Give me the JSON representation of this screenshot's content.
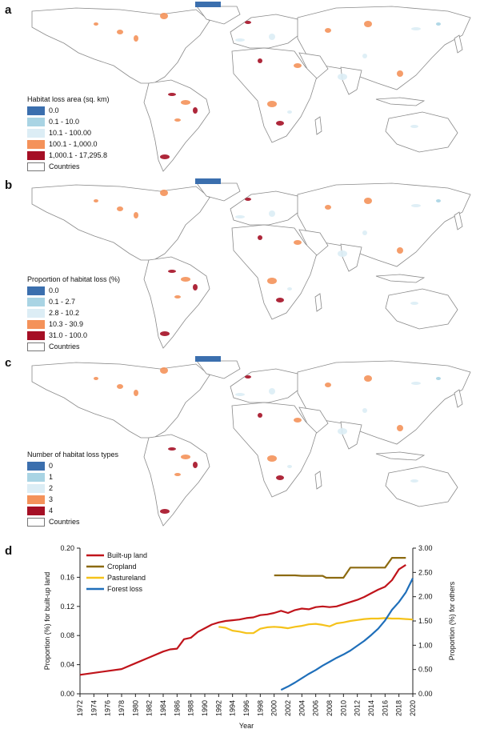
{
  "colors": {
    "class0": "#3b6fae",
    "class1": "#a9d4e4",
    "class2": "#dcedf5",
    "class3": "#f4925a",
    "class4": "#a50f25",
    "land": "#ffffff",
    "border": "#8a8a8a",
    "built_up": "#c0141b",
    "cropland": "#8c6a10",
    "pastureland": "#f5c21a",
    "forest_loss": "#1f6fba"
  },
  "panels": [
    {
      "letter": "a",
      "legend_title": "Habitat loss area (sq. km)",
      "legend": [
        "0.0",
        "0.1 - 10.0",
        "10.1 - 100.00",
        "100.1 - 1,000.0",
        "1,000.1 - 17,295.8"
      ],
      "countries_label": "Countries"
    },
    {
      "letter": "b",
      "legend_title": "Proportion of habitat loss (%)",
      "legend": [
        "0.0",
        "0.1 - 2.7",
        "2.8 - 10.2",
        "10.3 - 30.9",
        "31.0 - 100.0"
      ],
      "countries_label": "Countries"
    },
    {
      "letter": "c",
      "legend_title": "Number of habitat loss types",
      "legend": [
        "0",
        "1",
        "2",
        "3",
        "4"
      ],
      "countries_label": "Countries"
    }
  ],
  "chart_data": {
    "panel_letter": "d",
    "type": "line",
    "xlabel": "Year",
    "ylabel_left": "Proportion (%) for built-up land",
    "ylabel_right": "Proportion (%) for others",
    "xlim": [
      1972,
      2020
    ],
    "xticks": [
      "1972",
      "1974",
      "1976",
      "1978",
      "1980",
      "1982",
      "1984",
      "1986",
      "1988",
      "1990",
      "1992",
      "1994",
      "1996",
      "1998",
      "2000",
      "2002",
      "2004",
      "2006",
      "2008",
      "2010",
      "2012",
      "2014",
      "2016",
      "2018",
      "2020"
    ],
    "ylim_left": [
      0,
      0.2
    ],
    "yticks_left": [
      "0.00",
      "0.04",
      "0.08",
      "0.12",
      "0.16",
      "0.20"
    ],
    "ylim_right": [
      0,
      3
    ],
    "yticks_right": [
      "0.00",
      "0.50",
      "1.00",
      "1.50",
      "2.00",
      "2.50",
      "3.00"
    ],
    "series": [
      {
        "name": "Built-up land",
        "axis": "left",
        "color_key": "built_up",
        "x": [
          1972,
          1975,
          1978,
          1980,
          1982,
          1984,
          1985,
          1986,
          1987,
          1988,
          1989,
          1990,
          1991,
          1992,
          1993,
          1994,
          1995,
          1996,
          1997,
          1998,
          1999,
          2000,
          2001,
          2002,
          2003,
          2004,
          2005,
          2006,
          2007,
          2008,
          2009,
          2010,
          2011,
          2012,
          2013,
          2014,
          2015,
          2016,
          2017,
          2018,
          2019
        ],
        "values": [
          0.026,
          0.03,
          0.034,
          0.042,
          0.05,
          0.058,
          0.061,
          0.062,
          0.075,
          0.077,
          0.085,
          0.09,
          0.095,
          0.098,
          0.1,
          0.101,
          0.102,
          0.104,
          0.105,
          0.108,
          0.109,
          0.111,
          0.114,
          0.111,
          0.115,
          0.117,
          0.116,
          0.119,
          0.12,
          0.119,
          0.12,
          0.123,
          0.126,
          0.129,
          0.133,
          0.138,
          0.143,
          0.147,
          0.156,
          0.171,
          0.177
        ]
      },
      {
        "name": "Cropland",
        "axis": "right",
        "color_key": "cropland",
        "x": [
          2000,
          2001,
          2002,
          2003,
          2004,
          2005,
          2006,
          2007,
          2007.5,
          2008,
          2009,
          2010,
          2011,
          2012,
          2013,
          2014,
          2015,
          2016,
          2017,
          2018,
          2019
        ],
        "values": [
          2.44,
          2.44,
          2.44,
          2.44,
          2.43,
          2.43,
          2.43,
          2.43,
          2.39,
          2.39,
          2.39,
          2.39,
          2.6,
          2.6,
          2.6,
          2.6,
          2.6,
          2.6,
          2.8,
          2.8,
          2.8
        ]
      },
      {
        "name": "Pastureland",
        "axis": "right",
        "color_key": "pastureland",
        "x": [
          1992,
          1993,
          1994,
          1995,
          1996,
          1997,
          1998,
          1999,
          2000,
          2001,
          2002,
          2003,
          2004,
          2005,
          2006,
          2007,
          2008,
          2009,
          2010,
          2011,
          2012,
          2013,
          2014,
          2015,
          2016,
          2017,
          2018,
          2019,
          2020
        ],
        "values": [
          1.38,
          1.36,
          1.3,
          1.28,
          1.25,
          1.25,
          1.34,
          1.37,
          1.38,
          1.37,
          1.35,
          1.38,
          1.4,
          1.43,
          1.44,
          1.42,
          1.39,
          1.45,
          1.47,
          1.5,
          1.52,
          1.54,
          1.55,
          1.55,
          1.56,
          1.55,
          1.55,
          1.54,
          1.53
        ]
      },
      {
        "name": "Forest loss",
        "axis": "right",
        "color_key": "forest_loss",
        "x": [
          2001,
          2002,
          2003,
          2004,
          2005,
          2006,
          2007,
          2008,
          2009,
          2010,
          2011,
          2012,
          2013,
          2014,
          2015,
          2016,
          2017,
          2018,
          2019,
          2020
        ],
        "values": [
          0.08,
          0.15,
          0.23,
          0.32,
          0.41,
          0.49,
          0.58,
          0.66,
          0.74,
          0.81,
          0.89,
          0.99,
          1.09,
          1.21,
          1.34,
          1.51,
          1.73,
          1.89,
          2.09,
          2.38
        ]
      }
    ]
  }
}
